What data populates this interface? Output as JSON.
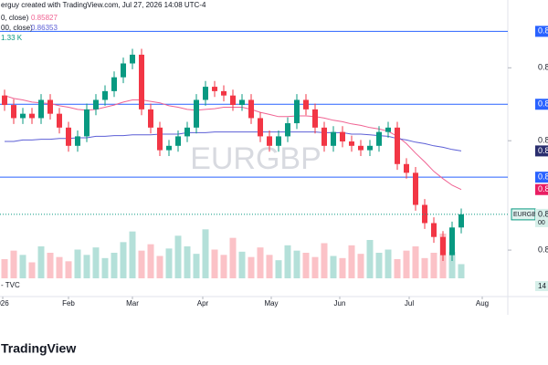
{
  "chart_data": {
    "type": "candlestick",
    "header": "erguy created with TradingView.com, Jul 27, 2026 14:08 UTC-4",
    "watermark": "EURGBP",
    "source": "- TVC",
    "logo": "TradingView",
    "xlim": [
      -0.5,
      55
    ],
    "xticks": [
      {
        "value": -0.2,
        "label": "026"
      },
      {
        "value": 7,
        "label": "Feb"
      },
      {
        "value": 14,
        "label": "Mar"
      },
      {
        "value": 21.7,
        "label": "Apr"
      },
      {
        "value": 29.2,
        "label": "May"
      },
      {
        "value": 36.7,
        "label": "Jun"
      },
      {
        "value": 44.3,
        "label": "Jul"
      },
      {
        "value": 52.3,
        "label": "Aug"
      }
    ],
    "ylim": [
      0.843,
      0.8843
    ],
    "yticks": [
      {
        "value": 0.875,
        "label": "0.8"
      },
      {
        "value": 0.865,
        "label": "0.8"
      },
      {
        "value": 0.85,
        "label": "0.8"
      }
    ],
    "levels": [
      {
        "value": 0.88,
        "label": "0.8"
      },
      {
        "value": 0.87,
        "label": "0.8"
      },
      {
        "value": 0.86,
        "label": "0.8"
      }
    ],
    "level_color": "#2962ff",
    "up_color": "#089981",
    "down_color": "#f23645",
    "open": [
      0.8712,
      0.8699,
      0.8681,
      0.8687,
      0.8681,
      0.8706,
      0.8687,
      0.8668,
      0.8643,
      0.8656,
      0.8693,
      0.8706,
      0.8718,
      0.8737,
      0.8756,
      0.8768,
      0.8693,
      0.8668,
      0.8637,
      0.8643,
      0.8656,
      0.8668,
      0.8706,
      0.8724,
      0.8718,
      0.8712,
      0.8699,
      0.8706,
      0.8681,
      0.8656,
      0.8643,
      0.8656,
      0.8674,
      0.8706,
      0.8693,
      0.8668,
      0.8643,
      0.8662,
      0.8649,
      0.8643,
      0.8637,
      0.8643,
      0.8662,
      0.8668,
      0.8618,
      0.8606,
      0.8562,
      0.8537,
      0.8518,
      0.8493,
      0.8531
    ],
    "high": [
      0.872,
      0.8707,
      0.8695,
      0.8695,
      0.8714,
      0.8714,
      0.8695,
      0.8676,
      0.8664,
      0.8701,
      0.8714,
      0.8726,
      0.8745,
      0.8764,
      0.8776,
      0.8776,
      0.8701,
      0.8676,
      0.8651,
      0.8664,
      0.8676,
      0.8714,
      0.8732,
      0.8732,
      0.8726,
      0.872,
      0.8714,
      0.8714,
      0.8689,
      0.8664,
      0.8664,
      0.8682,
      0.8714,
      0.8714,
      0.8701,
      0.8676,
      0.867,
      0.867,
      0.8657,
      0.8651,
      0.8651,
      0.867,
      0.8676,
      0.8676,
      0.8626,
      0.8614,
      0.857,
      0.8545,
      0.8526,
      0.8539,
      0.8557
    ],
    "low": [
      0.8691,
      0.8673,
      0.8673,
      0.8673,
      0.8673,
      0.8679,
      0.866,
      0.8635,
      0.8635,
      0.8648,
      0.8685,
      0.8698,
      0.871,
      0.8729,
      0.8748,
      0.8685,
      0.866,
      0.8629,
      0.8629,
      0.8635,
      0.8648,
      0.866,
      0.8698,
      0.871,
      0.8704,
      0.8691,
      0.8691,
      0.8673,
      0.8648,
      0.8635,
      0.8635,
      0.8648,
      0.8666,
      0.8685,
      0.866,
      0.8635,
      0.8635,
      0.8641,
      0.8635,
      0.8629,
      0.8629,
      0.8635,
      0.8654,
      0.861,
      0.8598,
      0.8554,
      0.8529,
      0.851,
      0.8485,
      0.8485,
      0.8523
    ],
    "close": [
      0.8699,
      0.8681,
      0.8687,
      0.8681,
      0.8706,
      0.8687,
      0.8668,
      0.8643,
      0.8656,
      0.8693,
      0.8706,
      0.8718,
      0.8737,
      0.8756,
      0.8768,
      0.8693,
      0.8668,
      0.8637,
      0.8643,
      0.8656,
      0.8668,
      0.8706,
      0.8724,
      0.8718,
      0.8712,
      0.8699,
      0.8706,
      0.8681,
      0.8656,
      0.8643,
      0.8656,
      0.8674,
      0.8706,
      0.8693,
      0.8668,
      0.8643,
      0.8662,
      0.8649,
      0.8643,
      0.8637,
      0.8643,
      0.8662,
      0.8668,
      0.8618,
      0.8606,
      0.8562,
      0.8537,
      0.8518,
      0.8493,
      0.8531,
      0.8549
    ],
    "series": [
      {
        "name": "0, close)",
        "legend_value": "0.85827",
        "tag": "0.8",
        "color": "#f06292",
        "values": [
          0.8712,
          0.8708,
          0.8706,
          0.8703,
          0.8702,
          0.8701,
          0.8698,
          0.8696,
          0.8693,
          0.8692,
          0.8693,
          0.8696,
          0.8699,
          0.8703,
          0.8706,
          0.8706,
          0.8704,
          0.8702,
          0.8698,
          0.8696,
          0.8693,
          0.8692,
          0.8693,
          0.8694,
          0.8696,
          0.8696,
          0.8696,
          0.8693,
          0.8689,
          0.8686,
          0.8683,
          0.8683,
          0.8684,
          0.8684,
          0.8683,
          0.8681,
          0.8678,
          0.8676,
          0.8673,
          0.8671,
          0.8668,
          0.8666,
          0.8663,
          0.8656,
          0.8646,
          0.8633,
          0.8621,
          0.8608,
          0.8598,
          0.8589,
          0.8583
        ]
      },
      {
        "name": "00, close)",
        "legend_value": "0.86353",
        "tag": "0.8",
        "color": "#5c5fd6",
        "values": [
          0.8649,
          0.8649,
          0.8651,
          0.8651,
          0.8652,
          0.8652,
          0.8653,
          0.8653,
          0.8654,
          0.8654,
          0.8656,
          0.8656,
          0.8657,
          0.8657,
          0.8658,
          0.8658,
          0.8658,
          0.8659,
          0.8659,
          0.8659,
          0.8661,
          0.8661,
          0.8661,
          0.8662,
          0.8662,
          0.8662,
          0.8662,
          0.8662,
          0.8662,
          0.8662,
          0.8662,
          0.8662,
          0.8662,
          0.8662,
          0.8662,
          0.8661,
          0.8661,
          0.8661,
          0.8659,
          0.8659,
          0.8658,
          0.8657,
          0.8656,
          0.8653,
          0.8651,
          0.8648,
          0.8646,
          0.8643,
          0.8641,
          0.8638,
          0.8636
        ]
      }
    ],
    "last_price_tag": {
      "label": "0.8",
      "countdown": "00",
      "symbol": "EURGBP",
      "color": "#089981"
    },
    "volume": {
      "legend_value": "1.33 K",
      "tag": "14",
      "vlim": [
        0,
        6
      ],
      "values": [
        1.8,
        2.6,
        2.2,
        1.5,
        3.0,
        2.4,
        2.0,
        1.6,
        2.7,
        2.2,
        2.9,
        1.9,
        2.4,
        3.4,
        4.4,
        2.6,
        3.2,
        2.1,
        2.8,
        4.0,
        3.0,
        2.3,
        4.6,
        2.7,
        2.2,
        3.8,
        2.5,
        2.0,
        2.9,
        2.2,
        1.7,
        3.1,
        2.6,
        2.4,
        2.0,
        3.3,
        2.1,
        1.9,
        3.1,
        2.3,
        3.6,
        2.4,
        2.7,
        1.8,
        2.6,
        3.0,
        1.9,
        2.4,
        4.2,
        2.5,
        1.33
      ]
    }
  }
}
